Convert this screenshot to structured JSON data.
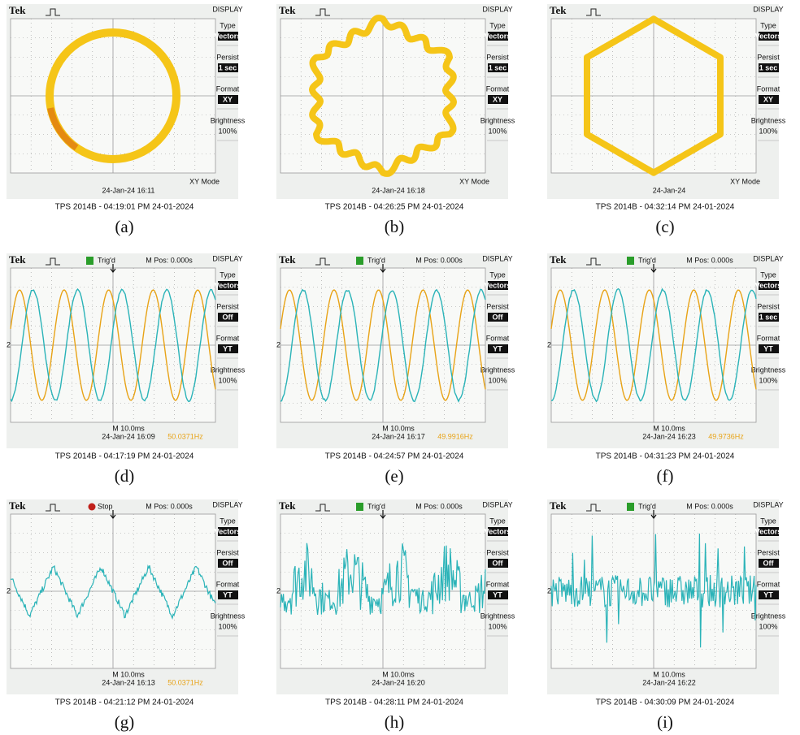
{
  "panels": [
    {
      "header": {
        "brand": "Tek",
        "menu_title": "DISPLAY"
      },
      "menu": [
        {
          "label": "Type",
          "value": "Vectors"
        },
        {
          "label": "Persist",
          "value": "1 sec"
        },
        {
          "label": "Format",
          "value": "XY"
        },
        {
          "label": "Brightness",
          "value": "100%"
        }
      ],
      "screen": {
        "mode": "XY Mode",
        "date": "24-Jan-24 16:11"
      },
      "footer": "TPS 2014B - 04:19:01 PM  24-01-2024",
      "caption": "(a)"
    },
    {
      "header": {
        "brand": "Tek",
        "menu_title": "DISPLAY"
      },
      "menu": [
        {
          "label": "Type",
          "value": "Vectors"
        },
        {
          "label": "Persist",
          "value": "1 sec"
        },
        {
          "label": "Format",
          "value": "XY"
        },
        {
          "label": "Brightness",
          "value": "100%"
        }
      ],
      "screen": {
        "mode": "XY Mode",
        "date": "24-Jan-24 16:18"
      },
      "footer": "TPS 2014B - 04:26:25 PM  24-01-2024",
      "caption": "(b)"
    },
    {
      "header": {
        "brand": "Tek",
        "menu_title": "DISPLAY"
      },
      "menu": [
        {
          "label": "Type",
          "value": "Vectors"
        },
        {
          "label": "Persist",
          "value": "1 sec"
        },
        {
          "label": "Format",
          "value": "XY"
        },
        {
          "label": "Brightness",
          "value": "100%"
        }
      ],
      "screen": {
        "mode": "XY Mode",
        "date": "24-Jan-24"
      },
      "footer": "TPS 2014B - 04:32:14 PM  24-01-2024",
      "caption": "(c)"
    },
    {
      "header": {
        "brand": "Tek",
        "status": "Trig'd",
        "status_color": "#2a9d2a",
        "mpos": "M Pos: 0.000s",
        "menu_title": "DISPLAY"
      },
      "menu": [
        {
          "label": "Type",
          "value": "Vectors"
        },
        {
          "label": "Persist",
          "value": "Off"
        },
        {
          "label": "Format",
          "value": "YT"
        },
        {
          "label": "Brightness",
          "value": "100%"
        }
      ],
      "screen": {
        "channel": "2",
        "timebase": "M 10.0ms",
        "date": "24-Jan-24 16:09",
        "frequency": "50.0371Hz"
      },
      "footer": "TPS 2014B - 04:17:19 PM  24-01-2024",
      "caption": "(d)"
    },
    {
      "header": {
        "brand": "Tek",
        "status": "Trig'd",
        "status_color": "#2a9d2a",
        "mpos": "M Pos: 0.000s",
        "menu_title": "DISPLAY"
      },
      "menu": [
        {
          "label": "Type",
          "value": "Vectors"
        },
        {
          "label": "Persist",
          "value": "Off"
        },
        {
          "label": "Format",
          "value": "YT"
        },
        {
          "label": "Brightness",
          "value": "100%"
        }
      ],
      "screen": {
        "channel": "2",
        "timebase": "M 10.0ms",
        "date": "24-Jan-24 16:17",
        "frequency": "49.9916Hz"
      },
      "footer": "TPS 2014B - 04:24:57 PM  24-01-2024",
      "caption": "(e)"
    },
    {
      "header": {
        "brand": "Tek",
        "status": "Trig'd",
        "status_color": "#2a9d2a",
        "mpos": "M Pos: 0.000s",
        "menu_title": "DISPLAY"
      },
      "menu": [
        {
          "label": "Type",
          "value": "Vectors"
        },
        {
          "label": "Persist",
          "value": "1 sec"
        },
        {
          "label": "Format",
          "value": "YT"
        },
        {
          "label": "Brightness",
          "value": "100%"
        }
      ],
      "screen": {
        "channel": "2",
        "timebase": "M 10.0ms",
        "date": "24-Jan-24 16:23",
        "frequency": "49.9736Hz"
      },
      "footer": "TPS 2014B - 04:31:23 PM  24-01-2024",
      "caption": "(f)"
    },
    {
      "header": {
        "brand": "Tek",
        "status": "Stop",
        "status_color": "#c0201a",
        "mpos": "M Pos: 0.000s",
        "menu_title": "DISPLAY"
      },
      "menu": [
        {
          "label": "Type",
          "value": "Vectors"
        },
        {
          "label": "Persist",
          "value": "Off"
        },
        {
          "label": "Format",
          "value": "YT"
        },
        {
          "label": "Brightness",
          "value": "100%"
        }
      ],
      "screen": {
        "channel": "2",
        "timebase": "M 10.0ms",
        "date": "24-Jan-24 16:13",
        "frequency": "50.0371Hz"
      },
      "footer": "TPS 2014B - 04:21:12 PM  24-01-2024",
      "caption": "(g)"
    },
    {
      "header": {
        "brand": "Tek",
        "status": "Trig'd",
        "status_color": "#2a9d2a",
        "mpos": "M Pos: 0.000s",
        "menu_title": "DISPLAY"
      },
      "menu": [
        {
          "label": "Type",
          "value": "Vectors"
        },
        {
          "label": "Persist",
          "value": "Off"
        },
        {
          "label": "Format",
          "value": "YT"
        },
        {
          "label": "Brightness",
          "value": "100%"
        }
      ],
      "screen": {
        "channel": "2",
        "timebase": "M 10.0ms",
        "date": "24-Jan-24 16:20"
      },
      "footer": "TPS 2014B - 04:28:11 PM  24-01-2024",
      "caption": "(h)"
    },
    {
      "header": {
        "brand": "Tek",
        "status": "Trig'd",
        "status_color": "#2a9d2a",
        "mpos": "M Pos: 0.000s",
        "menu_title": "DISPLAY"
      },
      "menu": [
        {
          "label": "Type",
          "value": "Vectors"
        },
        {
          "label": "Persist",
          "value": "Off"
        },
        {
          "label": "Format",
          "value": "YT"
        },
        {
          "label": "Brightness",
          "value": "100%"
        }
      ],
      "screen": {
        "channel": "2",
        "timebase": "M 10.0ms",
        "date": "24-Jan-24 16:22"
      },
      "footer": "TPS 2014B - 04:30:09 PM  24-01-2024",
      "caption": "(i)"
    }
  ]
}
